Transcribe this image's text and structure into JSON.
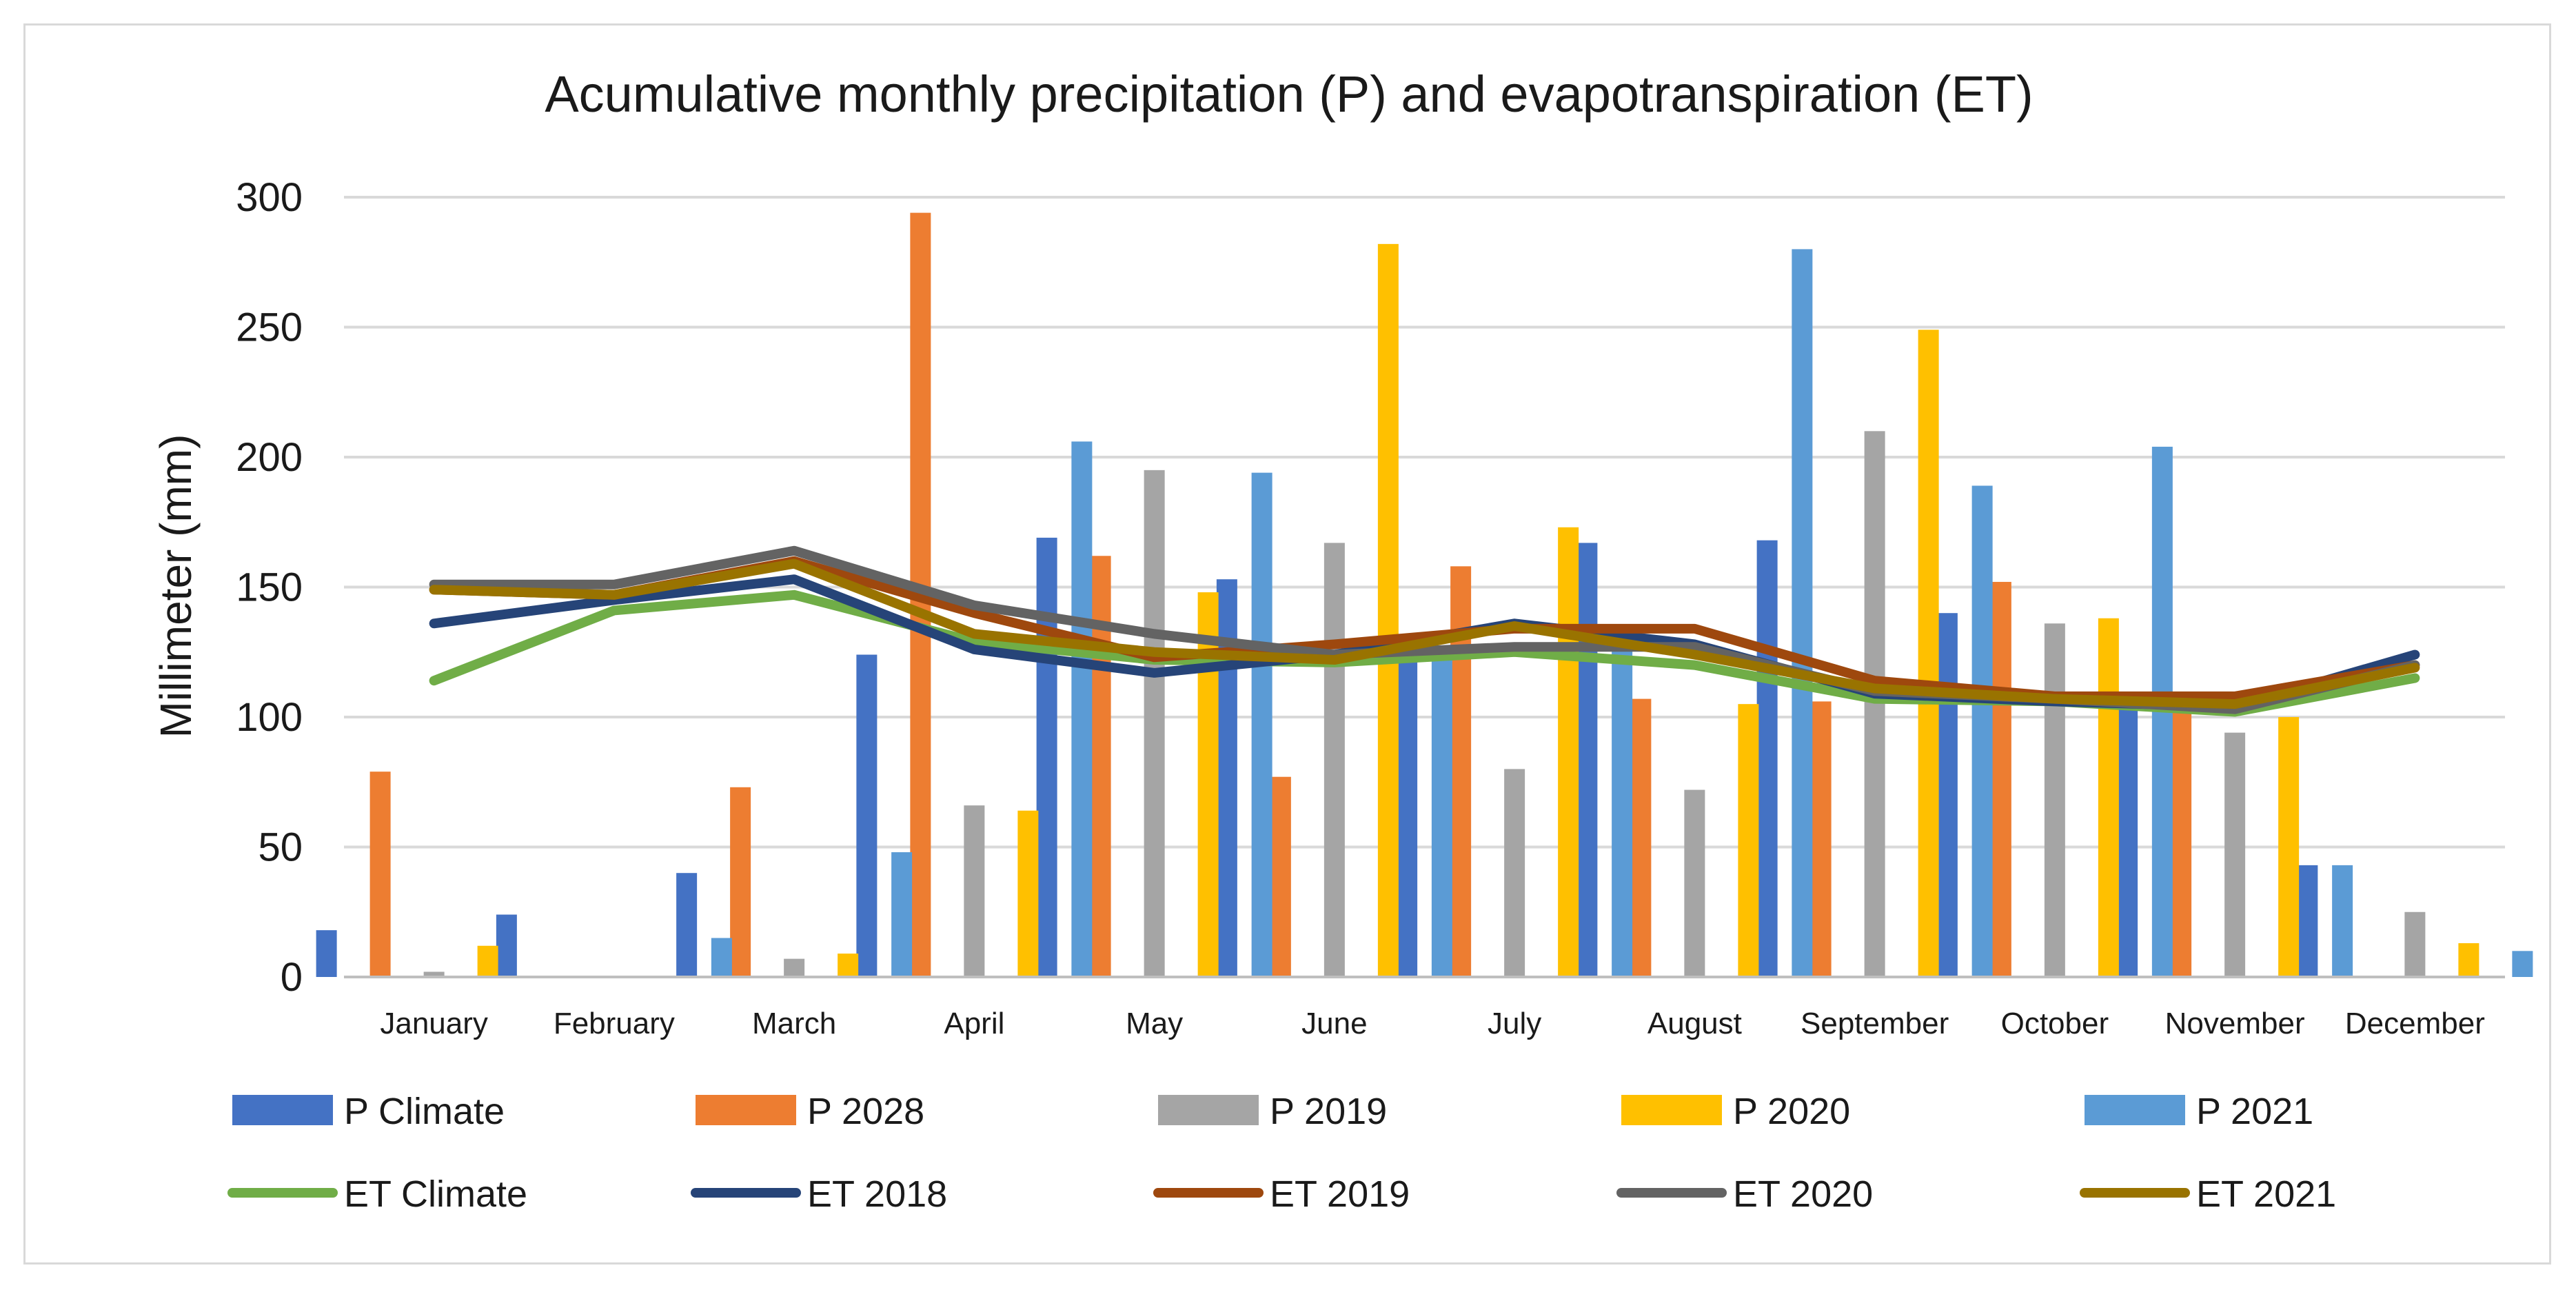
{
  "chart_data": {
    "type": "bar",
    "title": "Acumulative monthly precipitation (P) and evapotranspiration (ET)",
    "xlabel": "",
    "ylabel": "Millimeter (mm)",
    "ylim": [
      0,
      300
    ],
    "yticks": [
      0,
      50,
      100,
      150,
      200,
      250,
      300
    ],
    "grid": true,
    "legend_position": "bottom",
    "categories": [
      "January",
      "February",
      "March",
      "April",
      "May",
      "June",
      "July",
      "August",
      "September",
      "October",
      "November",
      "December"
    ],
    "bar_series": [
      {
        "name": "P Climate",
        "color": "#4472C4",
        "values": [
          18,
          24,
          40,
          124,
          169,
          153,
          128,
          167,
          168,
          140,
          106,
          43
        ]
      },
      {
        "name": "P 2028",
        "color": "#ED7D31",
        "values": [
          79,
          0,
          73,
          294,
          162,
          77,
          158,
          107,
          106,
          152,
          106,
          0
        ]
      },
      {
        "name": "P 2019",
        "color": "#A5A5A5",
        "values": [
          2,
          0,
          7,
          66,
          195,
          167,
          80,
          72,
          210,
          136,
          94,
          25
        ]
      },
      {
        "name": "P 2020",
        "color": "#FFC000",
        "values": [
          12,
          0,
          9,
          64,
          148,
          282,
          173,
          105,
          249,
          138,
          100,
          13
        ]
      },
      {
        "name": "P 2021",
        "color": "#5B9BD5",
        "values": [
          0,
          15,
          48,
          206,
          194,
          123,
          128,
          280,
          189,
          204,
          43,
          10
        ]
      }
    ],
    "line_series": [
      {
        "name": "ET Climate",
        "color": "#70AD47",
        "values": [
          114,
          141,
          147,
          129,
          122,
          121,
          125,
          120,
          107,
          106,
          102,
          115
        ]
      },
      {
        "name": "ET 2018",
        "color": "#264478",
        "values": [
          136,
          145,
          153,
          126,
          117,
          124,
          136,
          128,
          109,
          106,
          104,
          124
        ]
      },
      {
        "name": "ET  2019",
        "color": "#9E480E",
        "values": [
          149,
          147,
          160,
          140,
          123,
          128,
          134,
          134,
          114,
          108,
          108,
          120
        ]
      },
      {
        "name": "ET 2020",
        "color": "#636363",
        "values": [
          151,
          151,
          164,
          143,
          132,
          124,
          127,
          127,
          110,
          107,
          103,
          120
        ]
      },
      {
        "name": "ET 2021",
        "color": "#997300",
        "values": [
          149,
          147,
          159,
          132,
          125,
          122,
          135,
          124,
          111,
          107,
          105,
          119
        ]
      }
    ]
  }
}
